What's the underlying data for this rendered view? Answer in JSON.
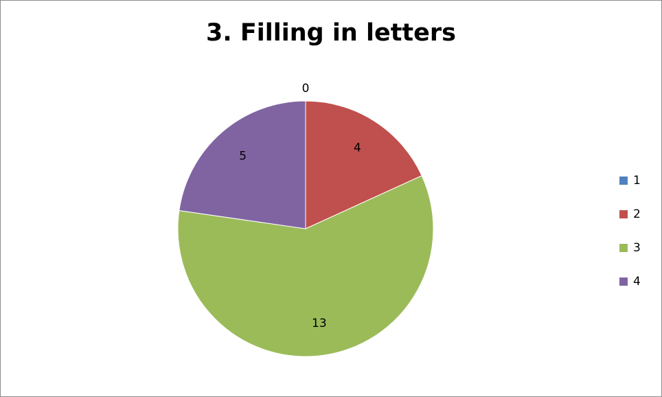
{
  "chart_data": {
    "type": "pie",
    "title": "3. Filling in letters",
    "categories": [
      "1",
      "2",
      "3",
      "4"
    ],
    "values": [
      0,
      4,
      13,
      5
    ],
    "colors": [
      "#4f81bd",
      "#c0504d",
      "#9bbb59",
      "#8064a2"
    ],
    "data_labels": [
      "0",
      "4",
      "13",
      "5"
    ],
    "legend_position": "right"
  }
}
